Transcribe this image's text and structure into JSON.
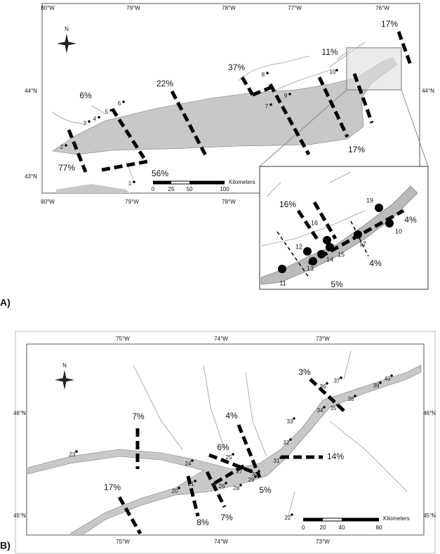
{
  "panel_a": {
    "label": "A)",
    "top_lon": [
      "80°W",
      "79°W",
      "78°W",
      "77°W",
      "76°W"
    ],
    "bottom_lon": [
      "80°W",
      "79°W",
      "78°W"
    ],
    "left_lat": [
      "44°N",
      "43°N"
    ],
    "right_lat": [
      "44°N"
    ],
    "north": "N",
    "scale_ticks": [
      "0",
      "25",
      "50",
      "100"
    ],
    "scale_unit": "Kilometers",
    "percentages": [
      "17%",
      "11%",
      "37%",
      "22%",
      "6%",
      "77%",
      "56%",
      "17%"
    ],
    "sites": [
      "1",
      "2",
      "3",
      "4",
      "5",
      "6",
      "7",
      "8",
      "9",
      "10"
    ],
    "inset": {
      "percentages": [
        "16%",
        "4%",
        "4%",
        "5%"
      ],
      "sites": [
        "19",
        "10",
        "16",
        "12",
        "17",
        "15",
        "14",
        "13",
        "11"
      ]
    }
  },
  "panel_b": {
    "label": "B)",
    "top_lon": [
      "75°W",
      "74°W",
      "73°W"
    ],
    "bottom_lon": [
      "75°W",
      "74°W",
      "73°W"
    ],
    "left_lat": [
      "46°N",
      "45°N"
    ],
    "right_lat": [
      "46°N",
      "45°N"
    ],
    "north": "N",
    "scale_ticks": [
      "0",
      "20",
      "40",
      "80"
    ],
    "scale_unit": "Kilometers",
    "percentages": [
      "3%",
      "7%",
      "4%",
      "6%",
      "14%",
      "17%",
      "5%",
      "7%",
      "8%"
    ],
    "sites": [
      "20",
      "21",
      "22",
      "23",
      "24",
      "25",
      "26",
      "27",
      "28",
      "29",
      "30",
      "31",
      "32",
      "33",
      "34",
      "35",
      "36",
      "37",
      "38",
      "39",
      "40"
    ]
  }
}
